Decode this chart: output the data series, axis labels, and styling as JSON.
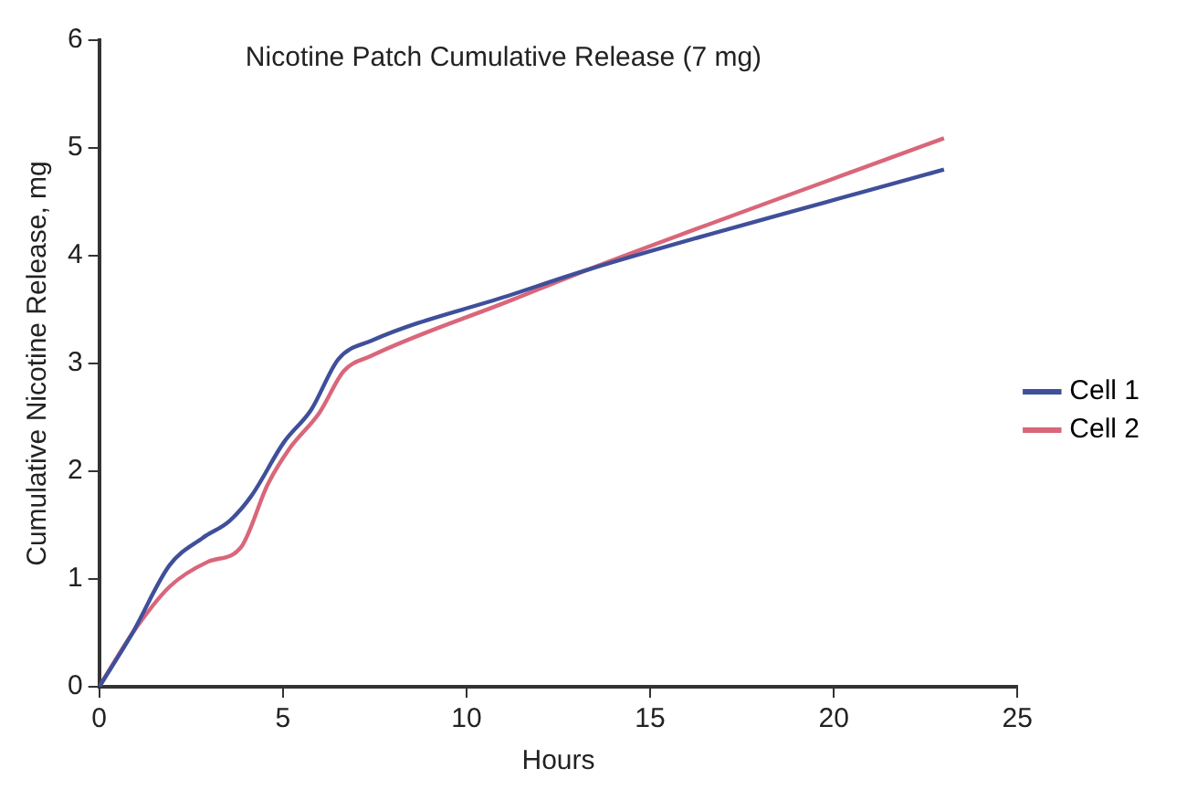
{
  "chart_data": {
    "type": "line",
    "title": "Nicotine Patch Cumulative Release (7 mg)",
    "xlabel": "Hours",
    "ylabel": "Cumulative Nicotine Release, mg",
    "xlim": [
      0,
      25
    ],
    "xticks": [
      0,
      5,
      10,
      15,
      20,
      25
    ],
    "ylim": [
      0,
      6
    ],
    "yticks": [
      0,
      1,
      2,
      3,
      4,
      5,
      6
    ],
    "grid": false,
    "legend": "right",
    "marker": "none",
    "line_style": "solid",
    "series": [
      {
        "name": "Cell 1",
        "color": "#3f4f9a",
        "x": [
          0,
          0.89,
          1.92,
          2.81,
          3.55,
          4.14,
          5.03,
          5.77,
          6.51,
          7.4,
          11.24,
          13.3,
          23
        ],
        "values": [
          0,
          0.49,
          1.13,
          1.38,
          1.54,
          1.77,
          2.27,
          2.57,
          3.04,
          3.21,
          3.64,
          3.87,
          4.8
        ]
      },
      {
        "name": "Cell 2",
        "color": "#d9667a",
        "x": [
          0,
          0.89,
          1.92,
          2.96,
          3.85,
          4.59,
          5.18,
          5.99,
          6.66,
          7.4,
          11.24,
          13.3,
          23
        ],
        "values": [
          0,
          0.49,
          0.93,
          1.16,
          1.29,
          1.88,
          2.21,
          2.54,
          2.93,
          3.07,
          3.59,
          3.87,
          5.09
        ]
      }
    ]
  }
}
